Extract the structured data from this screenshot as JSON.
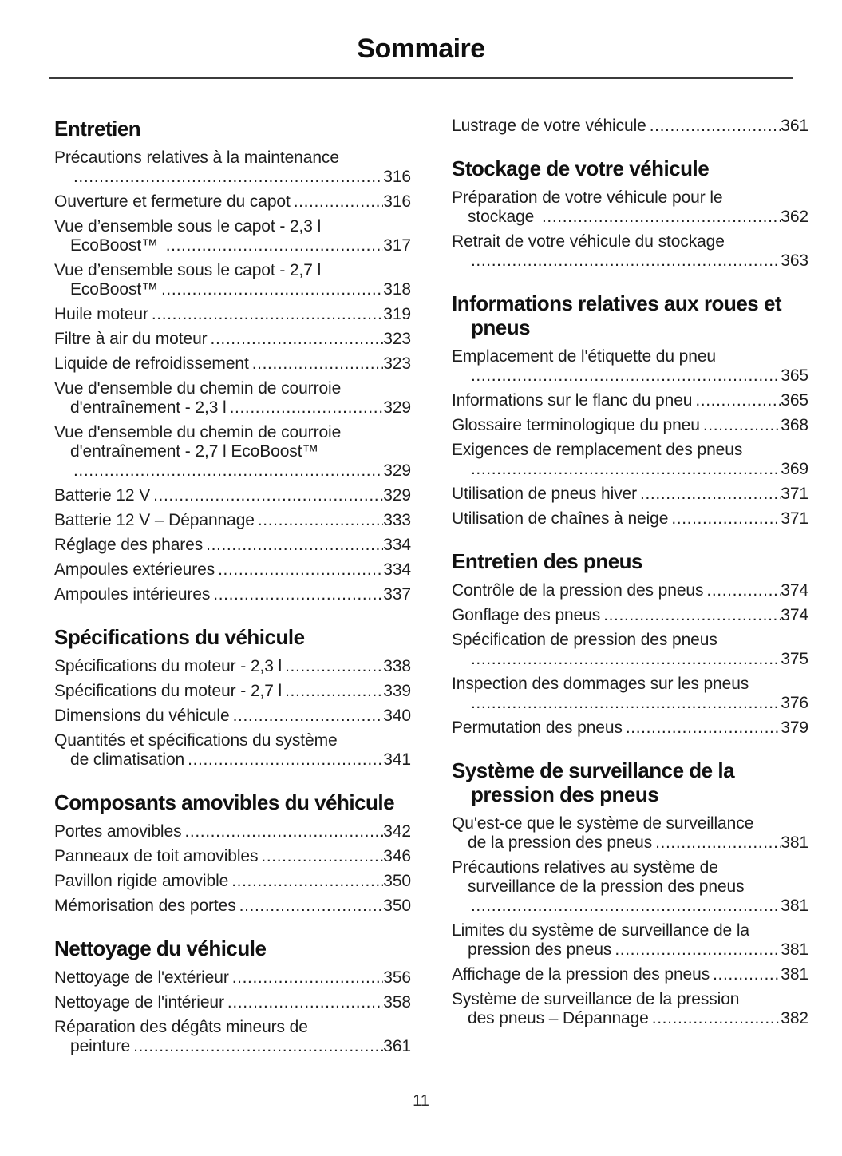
{
  "page": {
    "title": "Sommaire",
    "page_number": "11"
  },
  "colors": {
    "text": "#1e1e1e",
    "heading": "#111111",
    "rule": "#3b3b3b",
    "background": "#ffffff"
  },
  "toc": {
    "columns": [
      {
        "sections": [
          {
            "heading": "Entretien",
            "entries": [
              {
                "lines": [
                  "Précautions relatives à la maintenance",
                  ""
                ],
                "page": "316"
              },
              {
                "lines": [
                  "Ouverture et fermeture du capot"
                ],
                "page": "316"
              },
              {
                "lines": [
                  "Vue d’ensemble sous le capot - 2,3 l",
                  "EcoBoost™ "
                ],
                "page": "317"
              },
              {
                "lines": [
                  "Vue d’ensemble sous le capot - 2,7 l",
                  "EcoBoost™"
                ],
                "page": "318"
              },
              {
                "lines": [
                  "Huile moteur"
                ],
                "page": "319"
              },
              {
                "lines": [
                  "Filtre à air du moteur"
                ],
                "page": "323"
              },
              {
                "lines": [
                  "Liquide de refroidissement"
                ],
                "page": "323"
              },
              {
                "lines": [
                  "Vue d'ensemble du chemin de courroie",
                  "d'entraînement - 2,3 l"
                ],
                "page": "329"
              },
              {
                "lines": [
                  "Vue d'ensemble du chemin de courroie",
                  "d'entraînement - 2,7 l EcoBoost™",
                  ""
                ],
                "page": "329"
              },
              {
                "lines": [
                  "Batterie 12 V"
                ],
                "page": "329"
              },
              {
                "lines": [
                  "Batterie 12 V – Dépannage"
                ],
                "page": "333"
              },
              {
                "lines": [
                  "Réglage des phares"
                ],
                "page": "334"
              },
              {
                "lines": [
                  "Ampoules extérieures"
                ],
                "page": "334"
              },
              {
                "lines": [
                  "Ampoules intérieures"
                ],
                "page": "337"
              }
            ]
          },
          {
            "heading": "Spécifications du véhicule",
            "entries": [
              {
                "lines": [
                  "Spécifications du moteur - 2,3 l"
                ],
                "page": "338"
              },
              {
                "lines": [
                  "Spécifications du moteur - 2,7 l"
                ],
                "page": "339"
              },
              {
                "lines": [
                  "Dimensions du véhicule"
                ],
                "page": "340"
              },
              {
                "lines": [
                  "Quantités et spécifications du système",
                  "de climatisation"
                ],
                "page": "341"
              }
            ]
          },
          {
            "heading": "Composants amovibles du véhicule",
            "entries": [
              {
                "lines": [
                  "Portes amovibles"
                ],
                "page": "342"
              },
              {
                "lines": [
                  "Panneaux de toit amovibles"
                ],
                "page": "346"
              },
              {
                "lines": [
                  "Pavillon rigide amovible"
                ],
                "page": "350"
              },
              {
                "lines": [
                  "Mémorisation des portes"
                ],
                "page": "350"
              }
            ]
          },
          {
            "heading": "Nettoyage du véhicule",
            "entries": [
              {
                "lines": [
                  "Nettoyage de l'extérieur"
                ],
                "page": "356"
              },
              {
                "lines": [
                  "Nettoyage de l'intérieur"
                ],
                "page": "358"
              },
              {
                "lines": [
                  "Réparation des dégâts mineurs de",
                  "peinture"
                ],
                "page": "361"
              }
            ]
          }
        ]
      },
      {
        "sections": [
          {
            "heading": null,
            "entries": [
              {
                "lines": [
                  "Lustrage de votre véhicule"
                ],
                "page": "361"
              }
            ]
          },
          {
            "heading": "Stockage de votre véhicule",
            "entries": [
              {
                "lines": [
                  "Préparation de votre véhicule pour le",
                  "stockage "
                ],
                "page": "362"
              },
              {
                "lines": [
                  "Retrait de votre véhicule du stockage",
                  ""
                ],
                "page": "363"
              }
            ]
          },
          {
            "heading": "Informations relatives aux roues et pneus",
            "entries": [
              {
                "lines": [
                  "Emplacement de l'étiquette du pneu",
                  ""
                ],
                "page": "365"
              },
              {
                "lines": [
                  "Informations sur le flanc du pneu"
                ],
                "page": "365"
              },
              {
                "lines": [
                  "Glossaire terminologique du pneu"
                ],
                "page": "368"
              },
              {
                "lines": [
                  "Exigences de remplacement des pneus",
                  ""
                ],
                "page": "369"
              },
              {
                "lines": [
                  "Utilisation de pneus hiver"
                ],
                "page": "371"
              },
              {
                "lines": [
                  "Utilisation de chaînes à neige"
                ],
                "page": "371"
              }
            ]
          },
          {
            "heading": "Entretien des pneus",
            "entries": [
              {
                "lines": [
                  "Contrôle de la pression des pneus"
                ],
                "page": "374"
              },
              {
                "lines": [
                  "Gonflage des pneus"
                ],
                "page": "374"
              },
              {
                "lines": [
                  "Spécification de pression des pneus",
                  ""
                ],
                "page": "375"
              },
              {
                "lines": [
                  "Inspection des dommages sur les pneus",
                  ""
                ],
                "page": "376"
              },
              {
                "lines": [
                  "Permutation des pneus"
                ],
                "page": "379"
              }
            ]
          },
          {
            "heading": "Système de surveillance de la pression des pneus",
            "entries": [
              {
                "lines": [
                  "Qu'est-ce que le système de surveillance",
                  "de la pression des pneus"
                ],
                "page": "381"
              },
              {
                "lines": [
                  "Précautions relatives au système de",
                  "surveillance de la pression des pneus",
                  ""
                ],
                "page": "381"
              },
              {
                "lines": [
                  "Limites du système de surveillance de la",
                  "pression des pneus"
                ],
                "page": "381"
              },
              {
                "lines": [
                  "Affichage de la pression des pneus"
                ],
                "page": "381"
              },
              {
                "lines": [
                  "Système de surveillance de la pression",
                  "des pneus – Dépannage"
                ],
                "page": "382"
              }
            ]
          }
        ]
      }
    ]
  }
}
